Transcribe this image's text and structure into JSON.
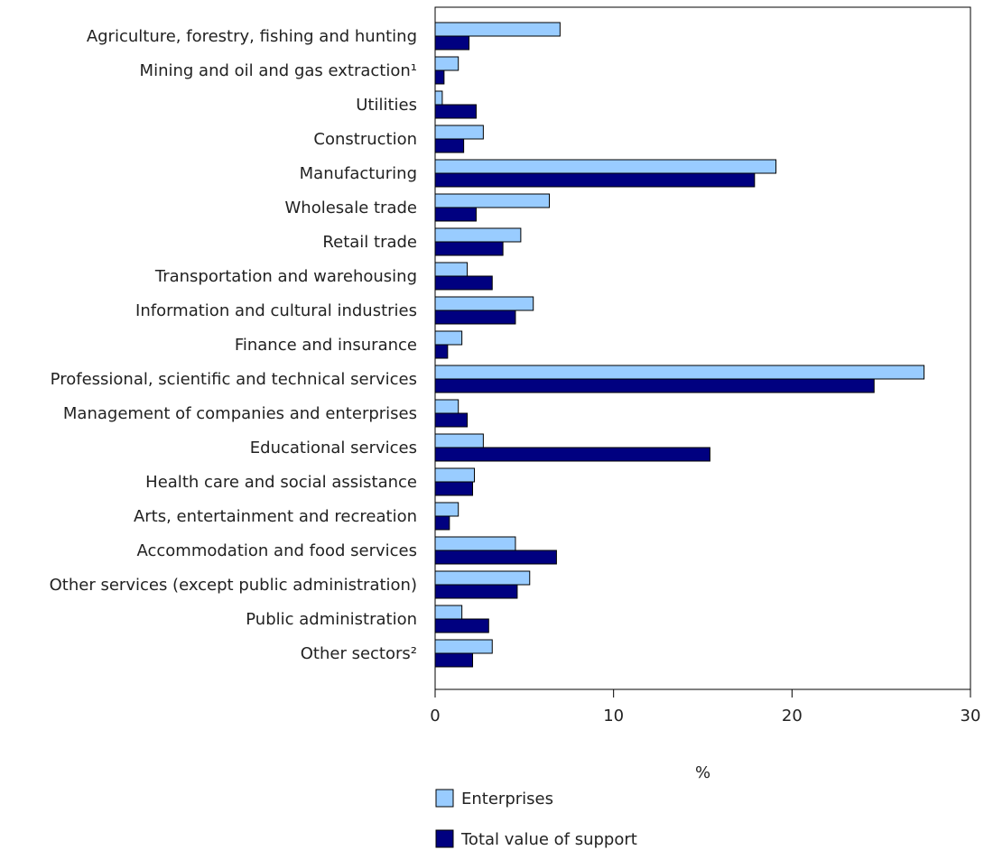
{
  "chart_data": {
    "type": "bar",
    "orientation": "horizontal",
    "title": "",
    "xlabel": "%",
    "ylabel": "",
    "xlim": [
      0,
      30
    ],
    "xticks": [
      "0",
      "10",
      "20",
      "30"
    ],
    "grid": false,
    "legend_position": "bottom",
    "categories": [
      "Agriculture, forestry, fishing and hunting",
      "Mining and oil and gas extraction¹",
      "Utilities",
      "Construction",
      "Manufacturing",
      "Wholesale trade",
      "Retail trade",
      "Transportation and warehousing",
      "Information and cultural industries",
      "Finance and insurance",
      "Professional, scientific and technical services",
      "Management of companies and enterprises",
      "Educational services",
      "Health care and social assistance",
      "Arts, entertainment and recreation",
      "Accommodation and food services",
      "Other services (except public administration)",
      "Public administration",
      "Other sectors²"
    ],
    "series": [
      {
        "name": "Enterprises",
        "color": "#99ccff",
        "values": [
          7.0,
          1.3,
          0.4,
          2.7,
          19.1,
          6.4,
          4.8,
          1.8,
          5.5,
          1.5,
          27.4,
          1.3,
          2.7,
          2.2,
          1.3,
          4.5,
          5.3,
          1.5,
          3.2
        ]
      },
      {
        "name": "Total value of support",
        "color": "#000080",
        "values": [
          1.9,
          0.5,
          2.3,
          1.6,
          17.9,
          2.3,
          3.8,
          3.2,
          4.5,
          0.7,
          24.6,
          1.8,
          15.4,
          2.1,
          0.8,
          6.8,
          4.6,
          3.0,
          2.1
        ]
      }
    ]
  }
}
